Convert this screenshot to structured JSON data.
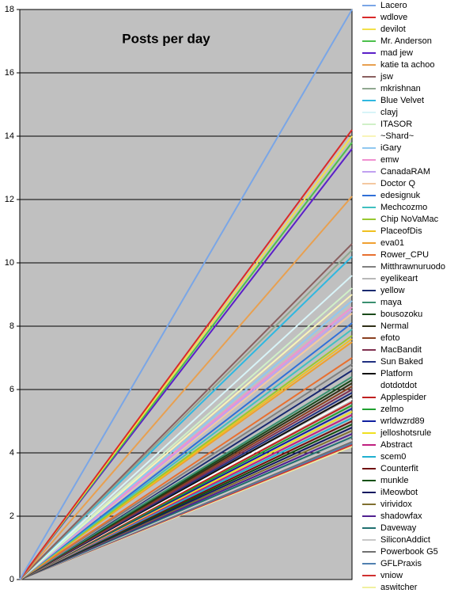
{
  "chart_data": {
    "type": "line",
    "title": "Posts per day",
    "categories": [
      null,
      null
    ],
    "ylim": [
      0,
      18
    ],
    "yticks": [
      0,
      2,
      4,
      6,
      8,
      10,
      12,
      14,
      16,
      18
    ],
    "grid": true,
    "background": "#c0c0c0",
    "series": [
      {
        "name": "Lacero",
        "color": "#7aa6e6",
        "values": [
          0,
          18
        ]
      },
      {
        "name": "wdlove",
        "color": "#d92a2a",
        "values": [
          0,
          14.2
        ]
      },
      {
        "name": "devilot",
        "color": "#f2e04a",
        "values": [
          0,
          14.0
        ]
      },
      {
        "name": "Mr. Anderson",
        "color": "#4cc04c",
        "values": [
          0,
          13.8
        ]
      },
      {
        "name": "mad jew",
        "color": "#5a1fc8",
        "values": [
          0,
          13.6
        ]
      },
      {
        "name": "katie ta achoo",
        "color": "#e8a050",
        "values": [
          0,
          12.1
        ]
      },
      {
        "name": "jsw",
        "color": "#8a6060",
        "values": [
          0,
          10.6
        ]
      },
      {
        "name": "mkrishnan",
        "color": "#90a890",
        "values": [
          0,
          10.4
        ]
      },
      {
        "name": "Blue Velvet",
        "color": "#30b8e0",
        "values": [
          0,
          10.2
        ]
      },
      {
        "name": "clayj",
        "color": "#d8f4f8",
        "values": [
          0,
          9.6
        ]
      },
      {
        "name": "ITASOR",
        "color": "#d0f0c8",
        "values": [
          0,
          9.2
        ]
      },
      {
        "name": "~Shard~",
        "color": "#f8f4b8",
        "values": [
          0,
          9.0
        ]
      },
      {
        "name": "iGary",
        "color": "#90c8f0",
        "values": [
          0,
          8.8
        ]
      },
      {
        "name": "emw",
        "color": "#f090d0",
        "values": [
          0,
          8.6
        ]
      },
      {
        "name": "CanadaRAM",
        "color": "#c0a0f0",
        "values": [
          0,
          8.5
        ]
      },
      {
        "name": "Doctor Q",
        "color": "#f4c8a0",
        "values": [
          0,
          8.4
        ]
      },
      {
        "name": "edesignuk",
        "color": "#3070d8",
        "values": [
          0,
          8.1
        ]
      },
      {
        "name": "Mechcozmo",
        "color": "#40c0c0",
        "values": [
          0,
          7.9
        ]
      },
      {
        "name": "Chip NoVaMac",
        "color": "#98c830",
        "values": [
          0,
          7.7
        ]
      },
      {
        "name": "PlaceofDis",
        "color": "#f0c020",
        "values": [
          0,
          7.6
        ]
      },
      {
        "name": "eva01",
        "color": "#f0a030",
        "values": [
          0,
          7.5
        ]
      },
      {
        "name": "Rower_CPU",
        "color": "#e87030",
        "values": [
          0,
          7.0
        ]
      },
      {
        "name": "Mitthrawnuruodo",
        "color": "#808080",
        "values": [
          0,
          6.8
        ]
      },
      {
        "name": "eyelikeart",
        "color": "#b8b8b8",
        "values": [
          0,
          6.7
        ]
      },
      {
        "name": "yellow",
        "color": "#1a2a70",
        "values": [
          0,
          6.6
        ]
      },
      {
        "name": "maya",
        "color": "#3a9070",
        "values": [
          0,
          6.4
        ]
      },
      {
        "name": "bousozoku",
        "color": "#1a4a1a",
        "values": [
          0,
          6.3
        ]
      },
      {
        "name": "Nermal",
        "color": "#303018",
        "values": [
          0,
          6.2
        ]
      },
      {
        "name": "efoto",
        "color": "#8a4020",
        "values": [
          0,
          6.1
        ]
      },
      {
        "name": "MacBandit",
        "color": "#803050",
        "values": [
          0,
          6.0
        ]
      },
      {
        "name": "Sun Baked",
        "color": "#203080",
        "values": [
          0,
          5.9
        ]
      },
      {
        "name": "Platform",
        "color": "#101010",
        "values": [
          0,
          5.8
        ]
      },
      {
        "name": "dotdotdot",
        "color": "#ffffff",
        "values": [
          0,
          5.7
        ]
      },
      {
        "name": "Applespider",
        "color": "#c02020",
        "values": [
          0,
          5.6
        ]
      },
      {
        "name": "zelmo",
        "color": "#20a030",
        "values": [
          0,
          5.5
        ]
      },
      {
        "name": "wrldwzrd89",
        "color": "#1020a0",
        "values": [
          0,
          5.4
        ]
      },
      {
        "name": "jelloshotsrule",
        "color": "#f0e020",
        "values": [
          0,
          5.3
        ]
      },
      {
        "name": "Abstract",
        "color": "#c02080",
        "values": [
          0,
          5.2
        ]
      },
      {
        "name": "scem0",
        "color": "#20b0d0",
        "values": [
          0,
          5.1
        ]
      },
      {
        "name": "Counterfit",
        "color": "#701010",
        "values": [
          0,
          5.0
        ]
      },
      {
        "name": "munkle",
        "color": "#105010",
        "values": [
          0,
          4.9
        ]
      },
      {
        "name": "iMeowbot",
        "color": "#101860",
        "values": [
          0,
          4.8
        ]
      },
      {
        "name": "virividox",
        "color": "#807030",
        "values": [
          0,
          4.7
        ]
      },
      {
        "name": "shadowfax",
        "color": "#502090",
        "values": [
          0,
          4.6
        ]
      },
      {
        "name": "Daveway",
        "color": "#207070",
        "values": [
          0,
          4.5
        ]
      },
      {
        "name": "SiliconAddict",
        "color": "#c8c8c8",
        "values": [
          0,
          4.4
        ]
      },
      {
        "name": "Powerbook G5",
        "color": "#707070",
        "values": [
          0,
          4.35
        ]
      },
      {
        "name": "GFLPraxis",
        "color": "#5080b0",
        "values": [
          0,
          4.3
        ]
      },
      {
        "name": "vniow",
        "color": "#d03030",
        "values": [
          0,
          4.25
        ]
      },
      {
        "name": "aswitcher",
        "color": "#f0f0a0",
        "values": [
          0,
          4.2
        ]
      }
    ]
  }
}
